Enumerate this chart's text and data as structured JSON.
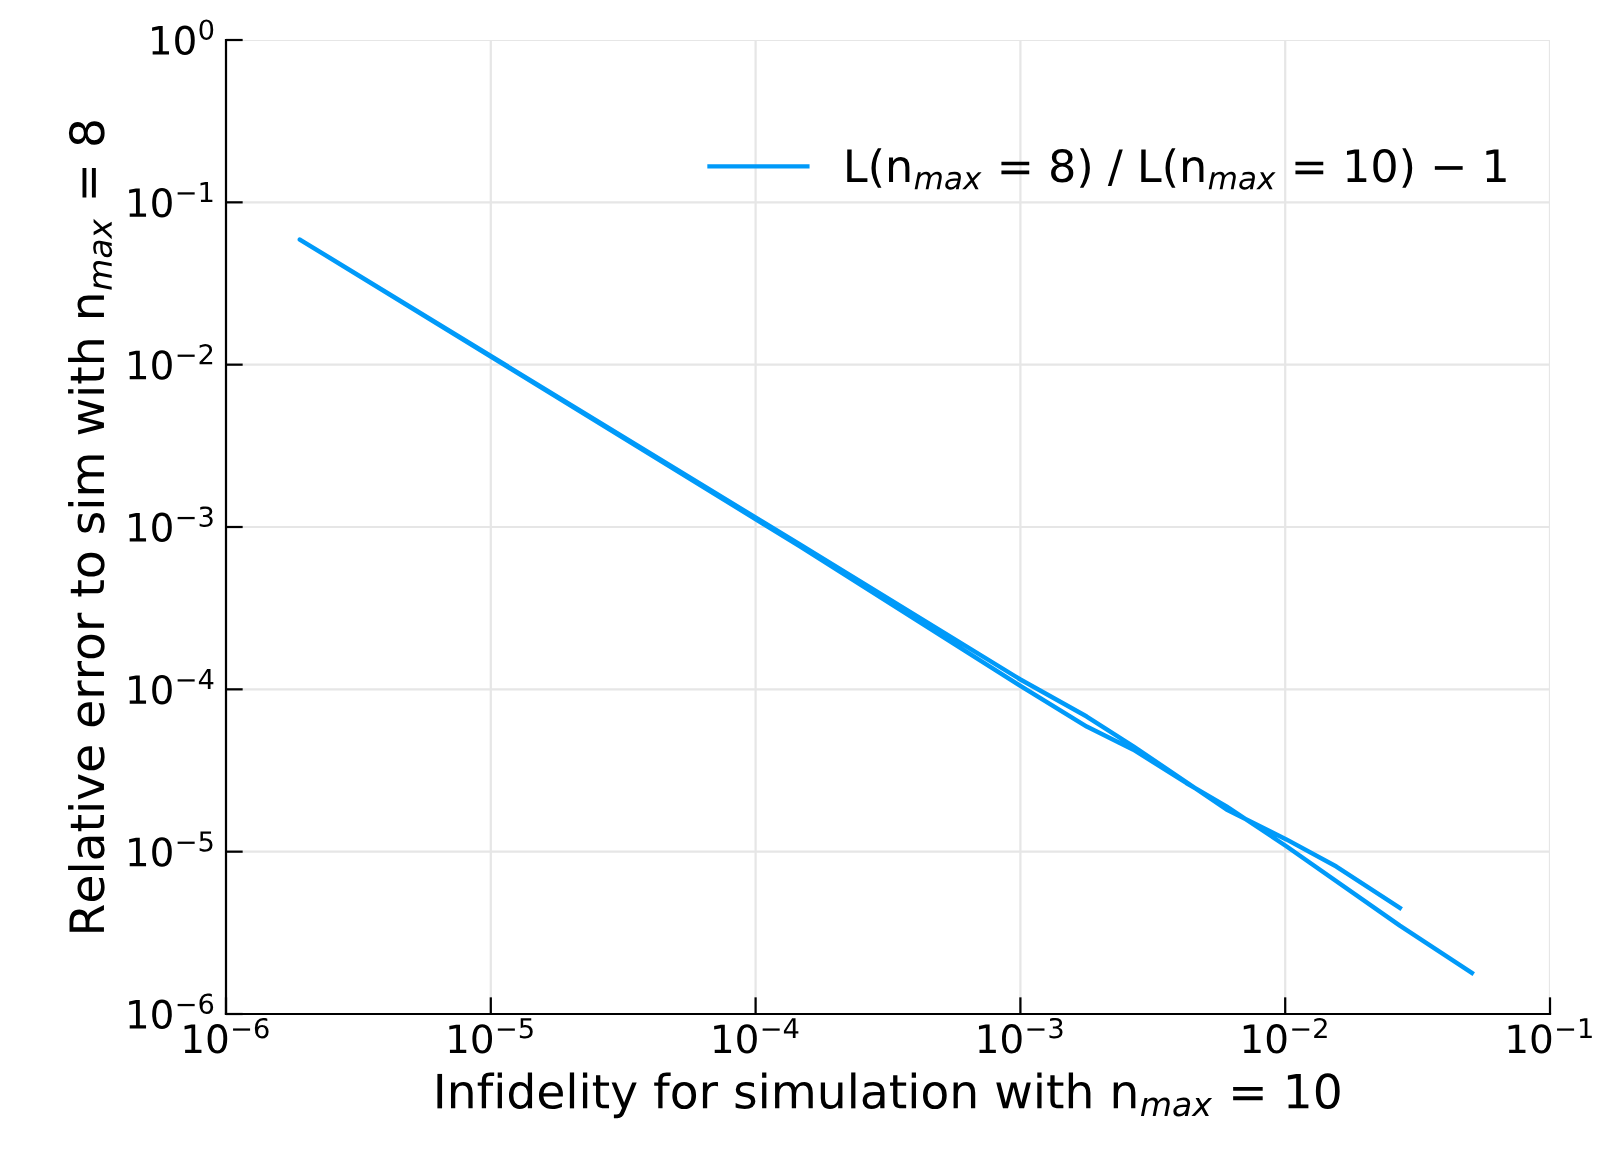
{
  "chart_data": {
    "type": "line",
    "xlabel": "Infidelity for simulation with n$_{max}$ = 10",
    "ylabel": "Relative error to sim with n$_{max}$ = 8",
    "log": "xy",
    "grid": true,
    "legend": "top right",
    "marker": "none",
    "line_style": "solid",
    "xlim": [
      1e-06,
      0.1
    ],
    "ylim": [
      1e-06,
      1
    ],
    "xticks": [
      {
        "value": 1e-06,
        "label": "10$^{−6}$"
      },
      {
        "value": 1e-05,
        "label": "10$^{−5}$"
      },
      {
        "value": 0.0001,
        "label": "10$^{−4}$"
      },
      {
        "value": 0.001,
        "label": "10$^{−3}$"
      },
      {
        "value": 0.01,
        "label": "10$^{−2}$"
      },
      {
        "value": 0.1,
        "label": "10$^{−1}$"
      }
    ],
    "yticks": [
      {
        "value": 1e-06,
        "label": "10$^{−6}$"
      },
      {
        "value": 1e-05,
        "label": "10$^{−5}$"
      },
      {
        "value": 0.0001,
        "label": "10$^{−4}$"
      },
      {
        "value": 0.001,
        "label": "10$^{−3}$"
      },
      {
        "value": 0.01,
        "label": "10$^{−2}$"
      },
      {
        "value": 0.1,
        "label": "10$^{−1}$"
      },
      {
        "value": 1,
        "label": "10$^{0}$"
      }
    ],
    "series": [
      {
        "name": "L(n$_{max}$ = 8) / L(n$_{max}$ = 10) − 1",
        "color": "#009af9",
        "x": [
          0.0271,
          0.0156,
          0.0101,
          0.006,
          0.00267,
          0.00178,
          0.001,
          0.000147,
          1.9e-06,
          0.000147,
          0.001,
          0.00178,
          0.00267,
          0.00423,
          0.006,
          0.0101,
          0.0271,
          0.0507
        ],
        "values": [
          4.5e-06,
          8.1e-06,
          1.19e-05,
          1.82e-05,
          4.46e-05,
          6.8e-05,
          0.000115,
          0.00078,
          0.059,
          0.00076,
          0.000105,
          5.9e-05,
          4.25e-05,
          2.65e-05,
          1.9e-05,
          1.08e-05,
          3.5e-06,
          1.79e-06
        ]
      }
    ]
  }
}
